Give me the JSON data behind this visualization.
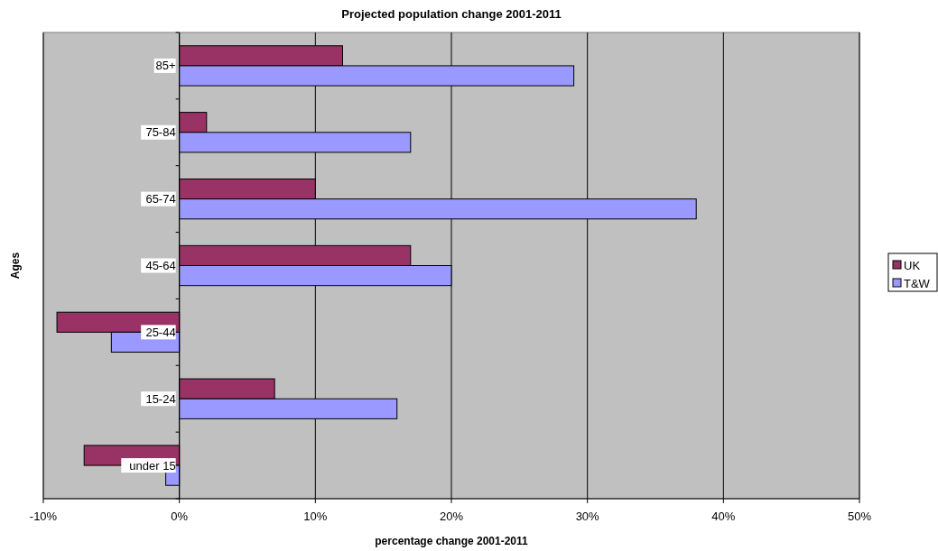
{
  "chart_data": {
    "type": "bar",
    "orientation": "horizontal",
    "title": "Projected population change 2001-2011",
    "xlabel": "percentage change 2001-2011",
    "ylabel": "Ages",
    "categories": [
      "85+",
      "75-84",
      "65-74",
      "45-64",
      "25-44",
      "15-24",
      "under 15"
    ],
    "series": [
      {
        "name": "UK",
        "color": "#993366",
        "values": [
          12,
          2,
          10,
          17,
          -9,
          7,
          -7
        ]
      },
      {
        "name": "T&W",
        "color": "#9999ff",
        "values": [
          29,
          17,
          38,
          20,
          -5,
          16,
          -1
        ]
      }
    ],
    "xlim": [
      -10,
      50
    ],
    "xticks": [
      {
        "value": -10,
        "label": "-10%"
      },
      {
        "value": 0,
        "label": "0%"
      },
      {
        "value": 10,
        "label": "10%"
      },
      {
        "value": 20,
        "label": "20%"
      },
      {
        "value": 30,
        "label": "30%"
      },
      {
        "value": 40,
        "label": "40%"
      },
      {
        "value": 50,
        "label": "50%"
      }
    ],
    "grid": "x",
    "legend": "right"
  }
}
